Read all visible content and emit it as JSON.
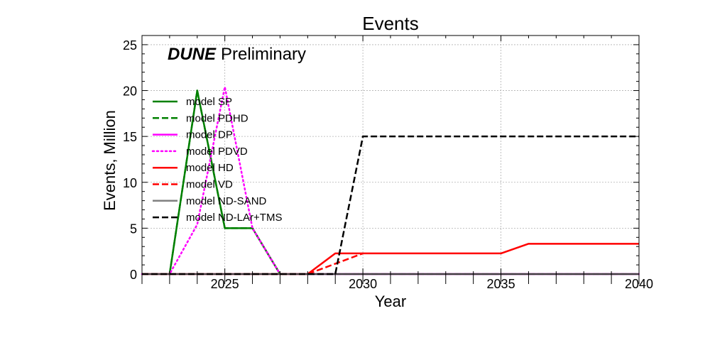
{
  "chart_data": {
    "type": "line",
    "title": "Events",
    "xlabel": "Year",
    "ylabel": "Events, Million",
    "xlim": [
      2022,
      2040
    ],
    "ylim": [
      0,
      26
    ],
    "xticks": [
      2025,
      2030,
      2035,
      2040
    ],
    "yticks": [
      0,
      5,
      10,
      15,
      20,
      25
    ],
    "grid": true,
    "legend_position": "upper-left",
    "watermark": {
      "bold": "DUNE",
      "rest": "Preliminary"
    },
    "series": [
      {
        "name": "model SP",
        "color": "#008000",
        "dash": "solid",
        "points": [
          [
            2022,
            0
          ],
          [
            2023,
            0
          ],
          [
            2024,
            20
          ],
          [
            2025,
            5
          ],
          [
            2026,
            5
          ],
          [
            2027,
            0
          ],
          [
            2040,
            0
          ]
        ]
      },
      {
        "name": "model PDHD",
        "color": "#008000",
        "dash": "dashed",
        "points": [
          [
            2022,
            0
          ],
          [
            2023,
            0
          ],
          [
            2024,
            20
          ],
          [
            2025,
            5
          ],
          [
            2026,
            5
          ],
          [
            2027,
            0
          ],
          [
            2040,
            0
          ]
        ]
      },
      {
        "name": "model DP",
        "color": "#ff00ff",
        "dash": "solid",
        "points": [
          [
            2022,
            0
          ],
          [
            2040,
            0
          ]
        ]
      },
      {
        "name": "model PDVD",
        "color": "#ff00ff",
        "dash": "dotted",
        "points": [
          [
            2022,
            0
          ],
          [
            2023,
            0
          ],
          [
            2024,
            5.4
          ],
          [
            2025,
            20.4
          ],
          [
            2026,
            5
          ],
          [
            2027,
            0
          ],
          [
            2040,
            0
          ]
        ]
      },
      {
        "name": "model HD",
        "color": "#ff0000",
        "dash": "solid",
        "points": [
          [
            2022,
            0
          ],
          [
            2028,
            0
          ],
          [
            2029,
            2.25
          ],
          [
            2035,
            2.25
          ],
          [
            2036,
            3.3
          ],
          [
            2040,
            3.3
          ]
        ]
      },
      {
        "name": "model VD",
        "color": "#ff0000",
        "dash": "dashed",
        "points": [
          [
            2022,
            0
          ],
          [
            2028,
            0
          ],
          [
            2030,
            2.25
          ]
        ]
      },
      {
        "name": "model ND-SAND",
        "color": "#808080",
        "dash": "solid",
        "points": [
          [
            2022,
            0
          ],
          [
            2040,
            0
          ]
        ]
      },
      {
        "name": "model ND-LAr+TMS",
        "color": "#000000",
        "dash": "dashed",
        "points": [
          [
            2022,
            0
          ],
          [
            2029,
            0
          ],
          [
            2030,
            15
          ],
          [
            2040,
            15
          ]
        ]
      }
    ]
  }
}
